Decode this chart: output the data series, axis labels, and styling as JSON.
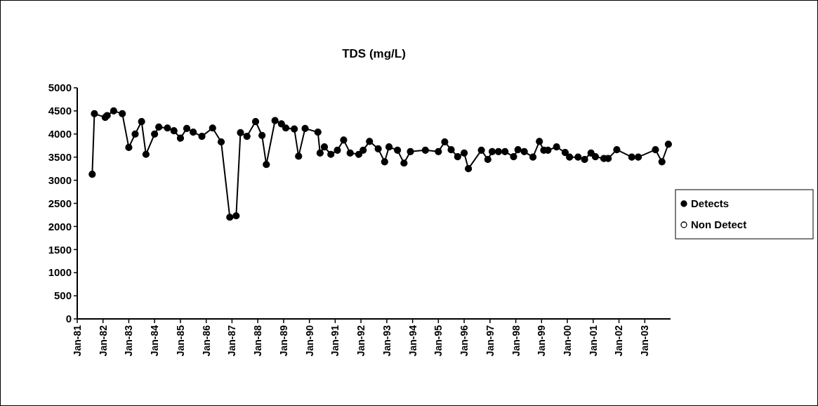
{
  "chart_data": {
    "type": "line",
    "title": "TDS (mg/L)",
    "marker": "circle",
    "legend": "right",
    "grid": false,
    "xlim": [
      "1981-01",
      "2004-01"
    ],
    "xticks": [
      {
        "value": "1981-01",
        "label": "Jan-81"
      },
      {
        "value": "1982-01",
        "label": "Jan-82"
      },
      {
        "value": "1983-01",
        "label": "Jan-83"
      },
      {
        "value": "1984-01",
        "label": "Jan-84"
      },
      {
        "value": "1985-01",
        "label": "Jan-85"
      },
      {
        "value": "1986-01",
        "label": "Jan-86"
      },
      {
        "value": "1987-01",
        "label": "Jan-87"
      },
      {
        "value": "1988-01",
        "label": "Jan-88"
      },
      {
        "value": "1989-01",
        "label": "Jan-89"
      },
      {
        "value": "1990-01",
        "label": "Jan-90"
      },
      {
        "value": "1991-01",
        "label": "Jan-91"
      },
      {
        "value": "1992-01",
        "label": "Jan-92"
      },
      {
        "value": "1993-01",
        "label": "Jan-93"
      },
      {
        "value": "1994-01",
        "label": "Jan-94"
      },
      {
        "value": "1995-01",
        "label": "Jan-95"
      },
      {
        "value": "1996-01",
        "label": "Jan-96"
      },
      {
        "value": "1997-01",
        "label": "Jan-97"
      },
      {
        "value": "1998-01",
        "label": "Jan-98"
      },
      {
        "value": "1999-01",
        "label": "Jan-99"
      },
      {
        "value": "2000-01",
        "label": "Jan-00"
      },
      {
        "value": "2001-01",
        "label": "Jan-01"
      },
      {
        "value": "2002-01",
        "label": "Jan-02"
      },
      {
        "value": "2003-01",
        "label": "Jan-03"
      }
    ],
    "ylim": [
      0,
      5000
    ],
    "yticks": [
      0,
      500,
      1000,
      1500,
      2000,
      2500,
      3000,
      3500,
      4000,
      4500,
      5000
    ],
    "series": [
      {
        "name": "Detects",
        "color": "#000000",
        "x": [
          "1981-08",
          "1981-09",
          "1982-02",
          "1982-03",
          "1982-06",
          "1982-10",
          "1983-01",
          "1983-04",
          "1983-07",
          "1983-09",
          "1984-01",
          "1984-03",
          "1984-07",
          "1984-10",
          "1985-01",
          "1985-04",
          "1985-07",
          "1985-11",
          "1986-04",
          "1986-08",
          "1986-12",
          "1987-03",
          "1987-05",
          "1987-08",
          "1987-12",
          "1988-03",
          "1988-05",
          "1988-09",
          "1988-12",
          "1989-02",
          "1989-06",
          "1989-08",
          "1989-11",
          "1990-05",
          "1990-06",
          "1990-08",
          "1990-11",
          "1991-02",
          "1991-05",
          "1991-08",
          "1991-12",
          "1992-02",
          "1992-05",
          "1992-09",
          "1992-12",
          "1993-02",
          "1993-06",
          "1993-09",
          "1993-12",
          "1994-07",
          "1995-01",
          "1995-04",
          "1995-07",
          "1995-10",
          "1996-01",
          "1996-03",
          "1996-09",
          "1996-12",
          "1997-02",
          "1997-05",
          "1997-08",
          "1997-12",
          "1998-02",
          "1998-05",
          "1998-09",
          "1998-12",
          "1999-02",
          "1999-04",
          "1999-08",
          "1999-12",
          "2000-02",
          "2000-06",
          "2000-09",
          "2000-12",
          "2001-02",
          "2001-06",
          "2001-08",
          "2001-12",
          "2002-07",
          "2002-10",
          "2003-06",
          "2003-09",
          "2003-12"
        ],
        "values": [
          3130,
          4440,
          4360,
          4400,
          4500,
          4440,
          3710,
          4000,
          4270,
          3560,
          4000,
          4150,
          4130,
          4070,
          3910,
          4120,
          4040,
          3950,
          4130,
          3830,
          2200,
          2230,
          4030,
          3950,
          4270,
          3970,
          3340,
          4290,
          4220,
          4130,
          4110,
          3520,
          4120,
          4040,
          3590,
          3720,
          3560,
          3650,
          3870,
          3590,
          3560,
          3650,
          3840,
          3680,
          3400,
          3720,
          3650,
          3370,
          3620,
          3650,
          3620,
          3830,
          3660,
          3510,
          3590,
          3250,
          3650,
          3450,
          3620,
          3620,
          3620,
          3510,
          3660,
          3620,
          3500,
          3840,
          3650,
          3650,
          3720,
          3600,
          3500,
          3500,
          3450,
          3590,
          3510,
          3470,
          3470,
          3660,
          3500,
          3500,
          3660,
          3400,
          3780
        ]
      },
      {
        "name": "Non Detect",
        "type": "scatter",
        "color": "#000000"
      }
    ]
  }
}
